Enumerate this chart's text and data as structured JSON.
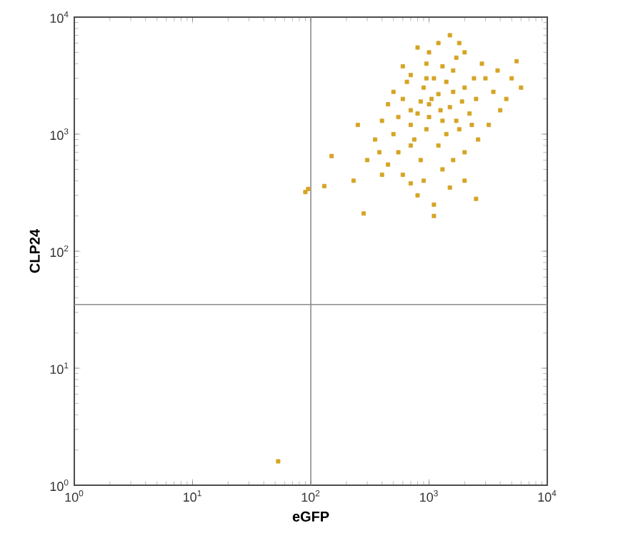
{
  "chart_data": {
    "type": "scatter",
    "xlabel": "eGFP",
    "ylabel": "CLP24",
    "log": "xy",
    "grid": false,
    "marker": "square",
    "xlim": [
      1,
      10000
    ],
    "ylim": [
      1,
      10000
    ],
    "xticks": [
      {
        "value": 1,
        "label": "10$^{0}$"
      },
      {
        "value": 10,
        "label": "10$^{1}$"
      },
      {
        "value": 100,
        "label": "10$^{2}$"
      },
      {
        "value": 1000,
        "label": "10$^{3}$"
      },
      {
        "value": 10000,
        "label": "10$^{4}$"
      }
    ],
    "yticks": [
      {
        "value": 1,
        "label": "10$^{0}$"
      },
      {
        "value": 10,
        "label": "10$^{1}$"
      },
      {
        "value": 100,
        "label": "10$^{2}$"
      },
      {
        "value": 1000,
        "label": "10$^{3}$"
      },
      {
        "value": 10000,
        "label": "10$^{4}$"
      }
    ],
    "ref_lines": [
      {
        "axis": "x",
        "value": 100,
        "color": "#8c8c8c"
      },
      {
        "axis": "y",
        "value": 35,
        "color": "#8c8c8c"
      }
    ],
    "series": [
      {
        "color": "#d6a424",
        "x": [
          1000,
          800,
          1200,
          900,
          700,
          1500,
          1100,
          600,
          1300,
          2000,
          500,
          1600,
          750,
          2500,
          950,
          1800,
          650,
          400,
          1400,
          3000,
          550,
          850,
          1200,
          2200,
          3500,
          450,
          700,
          1700,
          1000,
          2800,
          5000,
          6000,
          4000,
          350,
          300,
          600,
          900,
          1300,
          2000,
          2600,
          1500,
          800,
          1100,
          2000,
          450,
          380,
          3200,
          4500,
          1200,
          800,
          2000,
          1500,
          600,
          950,
          1250,
          1050,
          850,
          700,
          1900,
          1600,
          1400,
          1000,
          550,
          500,
          2400,
          1300,
          950,
          1700,
          2300,
          700,
          1800,
          3800,
          5500,
          400,
          250,
          230,
          1100,
          2500,
          700,
          1600,
          53,
          90,
          95,
          130,
          150,
          280
        ],
        "values": [
          1800,
          1500,
          2200,
          2500,
          1200,
          1700,
          3000,
          2000,
          1300,
          2500,
          1000,
          3500,
          900,
          2000,
          4000,
          1100,
          2800,
          1300,
          2800,
          3000,
          700,
          600,
          800,
          1500,
          2300,
          1800,
          3200,
          4500,
          5000,
          4000,
          3000,
          2500,
          1600,
          900,
          600,
          450,
          400,
          500,
          700,
          900,
          350,
          300,
          250,
          400,
          550,
          700,
          1200,
          2000,
          6000,
          5500,
          5000,
          7000,
          3800,
          1100,
          1600,
          2000,
          1900,
          1600,
          1900,
          2300,
          1000,
          1400,
          1400,
          2300,
          3000,
          3800,
          3000,
          1300,
          1200,
          800,
          6000,
          3500,
          4200,
          450,
          1200,
          400,
          200,
          280,
          380,
          600,
          1.6,
          320,
          340,
          360,
          650,
          210
        ]
      }
    ]
  }
}
